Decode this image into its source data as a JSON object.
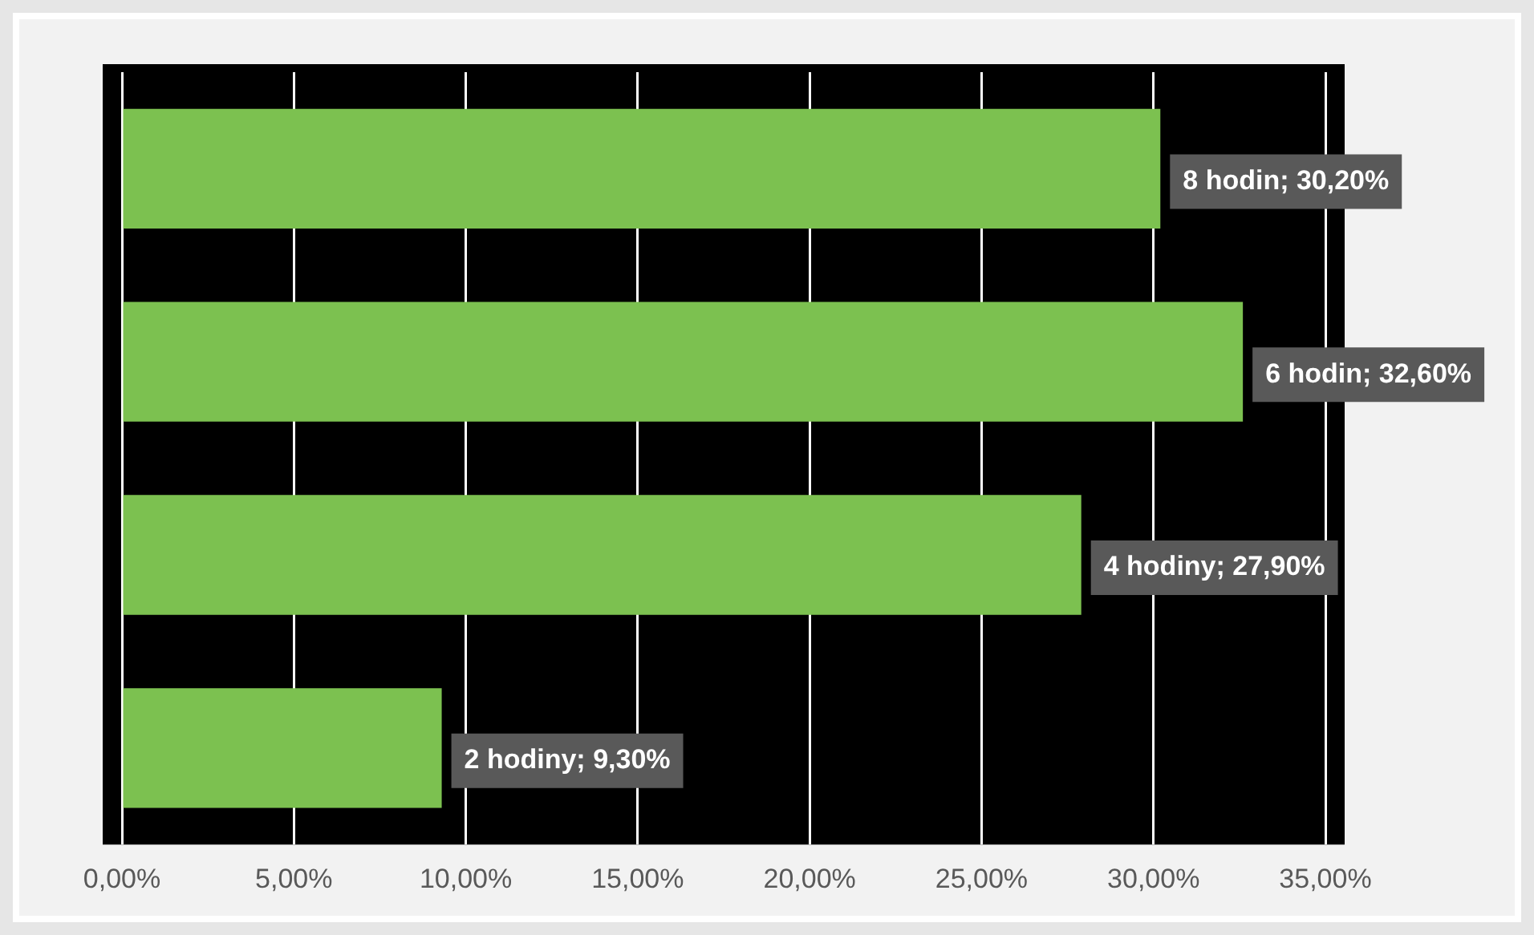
{
  "chart_data": {
    "type": "bar",
    "orientation": "horizontal",
    "categories": [
      null,
      null,
      null,
      null
    ],
    "series": [
      {
        "color": "#7cc150",
        "values": [
          30.2,
          32.6,
          27.9,
          9.3
        ],
        "value_labels": [
          "8 hodin; 30,20%",
          "6 hodin; 32,60%",
          "4 hodiny; 27,90%",
          "2 hodiny; 9,30%"
        ]
      }
    ],
    "xlim": [
      0,
      35
    ],
    "xticks": [
      {
        "value": 0,
        "label": "0,00%"
      },
      {
        "value": 5,
        "label": "5,00%"
      },
      {
        "value": 10,
        "label": "10,00%"
      },
      {
        "value": 15,
        "label": "15,00%"
      },
      {
        "value": 20,
        "label": "20,00%"
      },
      {
        "value": 25,
        "label": "25,00%"
      },
      {
        "value": 30,
        "label": "30,00%"
      },
      {
        "value": 35,
        "label": "35,00%"
      }
    ],
    "grid": "x",
    "legend": false,
    "tick_labels": "x"
  }
}
